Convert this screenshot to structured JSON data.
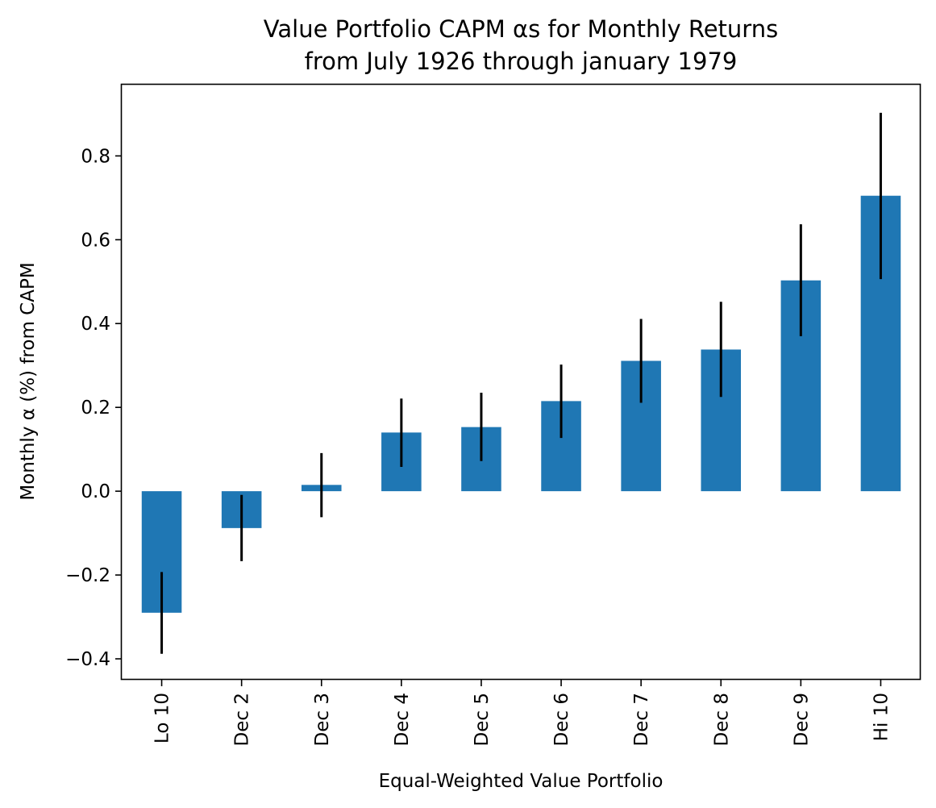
{
  "chart_data": {
    "type": "bar",
    "title": "Value Portfolio CAPM αs for Monthly Returns",
    "subtitle": "from July 1926 through january 1979",
    "xlabel": "Equal-Weighted Value Portfolio",
    "ylabel": "Monthly α (%) from CAPM",
    "categories": [
      "Lo 10",
      "Dec 2",
      "Dec 3",
      "Dec 4",
      "Dec 5",
      "Dec 6",
      "Dec 7",
      "Dec 8",
      "Dec 9",
      "Hi 10"
    ],
    "values": [
      -0.29,
      -0.088,
      0.015,
      0.14,
      0.153,
      0.215,
      0.311,
      0.338,
      0.503,
      0.705
    ],
    "error_low": [
      -0.388,
      -0.167,
      -0.062,
      0.058,
      0.072,
      0.127,
      0.211,
      0.225,
      0.37,
      0.506
    ],
    "error_high": [
      -0.193,
      -0.009,
      0.091,
      0.221,
      0.235,
      0.302,
      0.411,
      0.452,
      0.637,
      0.903
    ],
    "ylim": [
      -0.45,
      0.97
    ],
    "yticks": [
      -0.4,
      -0.2,
      0.0,
      0.2,
      0.4,
      0.6,
      0.8
    ],
    "ytick_labels": [
      "−0.4",
      "−0.2",
      "0.0",
      "0.2",
      "0.4",
      "0.6",
      "0.8"
    ],
    "grid": false,
    "legend": "none",
    "bar_color": "#1f77b4",
    "error_color": "#000000"
  }
}
